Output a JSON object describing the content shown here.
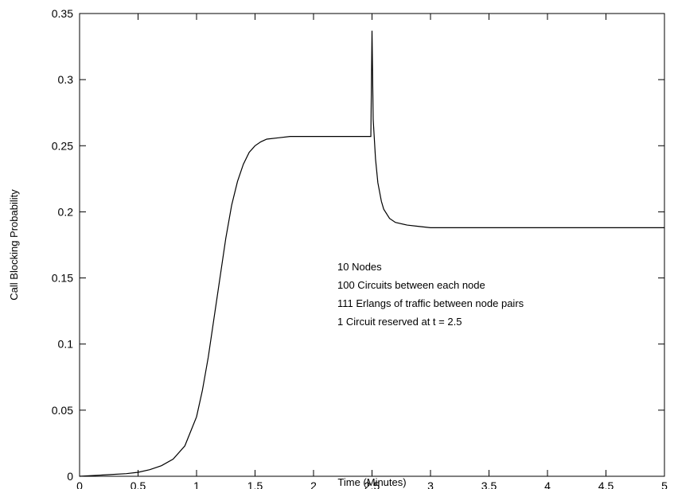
{
  "chart_data": {
    "type": "line",
    "title": "",
    "xlabel": "Time (Minutes)",
    "ylabel": "Call Blocking Probability",
    "xlim": [
      0,
      5
    ],
    "ylim": [
      0,
      0.35
    ],
    "xticks": [
      "0",
      "0.5",
      "1",
      "1.5",
      "2",
      "2.5",
      "3",
      "3.5",
      "4",
      "4.5",
      "5"
    ],
    "yticks": [
      "0",
      "0.05",
      "0.1",
      "0.15",
      "0.2",
      "0.25",
      "0.3",
      "0.35"
    ],
    "grid": false,
    "legend": "none",
    "line_color": "#000000",
    "series": [
      {
        "x": [
          0,
          0.2,
          0.4,
          0.5,
          0.6,
          0.7,
          0.8,
          0.9,
          1.0,
          1.05,
          1.1,
          1.15,
          1.2,
          1.25,
          1.3,
          1.35,
          1.4,
          1.45,
          1.5,
          1.55,
          1.6,
          1.7,
          1.8,
          1.9,
          2.0,
          2.2,
          2.4,
          2.49,
          2.5,
          2.51,
          2.53,
          2.55,
          2.58,
          2.6,
          2.65,
          2.7,
          2.8,
          2.9,
          3.0,
          3.5,
          4.0,
          4.5,
          5.0
        ],
        "y": [
          0,
          0.001,
          0.002,
          0.003,
          0.005,
          0.008,
          0.013,
          0.023,
          0.045,
          0.065,
          0.09,
          0.12,
          0.15,
          0.18,
          0.205,
          0.223,
          0.236,
          0.245,
          0.25,
          0.253,
          0.255,
          0.256,
          0.257,
          0.257,
          0.257,
          0.257,
          0.257,
          0.257,
          0.337,
          0.27,
          0.24,
          0.222,
          0.208,
          0.202,
          0.195,
          0.192,
          0.19,
          0.189,
          0.188,
          0.188,
          0.188,
          0.188,
          0.188
        ]
      }
    ],
    "annotations": [
      "10 Nodes",
      "100 Circuits between each node",
      "111 Erlangs of traffic between node pairs",
      "1 Circuit reserved at t = 2.5"
    ]
  }
}
